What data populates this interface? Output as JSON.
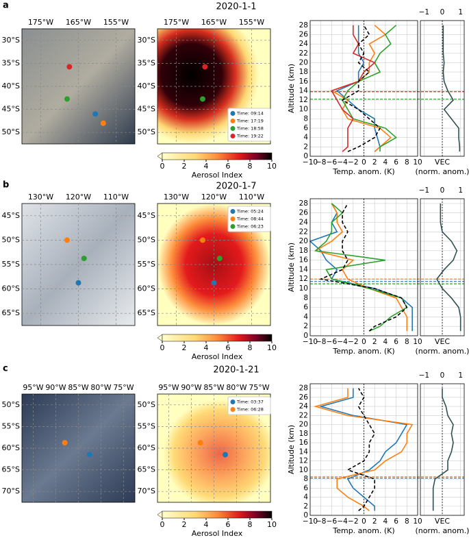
{
  "colorbar": {
    "label": "Aerosol Index",
    "lim": [
      0,
      10
    ],
    "ticks": [
      0,
      2,
      4,
      6,
      8,
      10
    ]
  },
  "temp_axis": {
    "xlabel": "Temp. anom. (K)",
    "ylabel": "Altitude (km)",
    "xlim": [
      -10,
      10
    ],
    "ylim": [
      0,
      29
    ],
    "grid": true,
    "xticks": [
      {
        "value": -10,
        "label": "−10"
      },
      {
        "value": -8,
        "label": "−8"
      },
      {
        "value": -6,
        "label": "−6"
      },
      {
        "value": -4,
        "label": "−4"
      },
      {
        "value": -2,
        "label": "−2"
      },
      0,
      2,
      4,
      6,
      8,
      10
    ],
    "yticks": [
      0,
      2,
      4,
      6,
      8,
      10,
      12,
      14,
      16,
      18,
      20,
      22,
      24,
      26,
      28
    ],
    "altitude": [
      1,
      2,
      4,
      6,
      8,
      10,
      12,
      14,
      16,
      18,
      20,
      22,
      24,
      26,
      28
    ]
  },
  "vec_axis": {
    "title": "VEC",
    "subtitle": "(norm. anom.)",
    "xlim": [
      -1.2,
      1.2
    ],
    "xticks": [
      {
        "value": -1,
        "label": "−1"
      },
      0,
      1
    ],
    "color": "#2f4f4f"
  },
  "rows": [
    {
      "label": "a",
      "title": "2020-1-1",
      "lon_labels": [
        "175°W",
        "165°W",
        "155°W"
      ],
      "lat_labels": [
        "30°S",
        "35°S",
        "40°S",
        "45°S",
        "50°S"
      ],
      "legend_loc": "lower right",
      "series": [
        {
          "name": "Time: 09:14",
          "color": "#1f77b4",
          "tropopause": null,
          "values": [
            2,
            3,
            2.5,
            2,
            2,
            -1,
            -3,
            -5,
            -1,
            -1,
            0,
            -1,
            -1,
            -1,
            -1
          ]
        },
        {
          "name": "Time: 17:19",
          "color": "#ff7f0e",
          "tropopause": null,
          "values": [
            2,
            3,
            5,
            3,
            -3,
            -4,
            -3,
            -6,
            -1,
            1,
            1,
            2,
            1,
            4,
            2
          ]
        },
        {
          "name": "Time: 18:58",
          "color": "#2ca02c",
          "tropopause": 12.2,
          "values": [
            3,
            3,
            6,
            4,
            -2,
            -3,
            -4,
            -3,
            -1,
            3,
            2,
            3,
            5,
            4,
            6
          ]
        },
        {
          "name": "Time: 19:22",
          "color": "#d62728",
          "tropopause": 13.8,
          "values": [
            -4,
            -3,
            -3,
            -3,
            -2,
            -4,
            -5,
            -6,
            -1,
            0,
            2,
            -2,
            -1,
            -2,
            -2
          ]
        }
      ],
      "reference": {
        "color": "#000000",
        "values": [
          -3,
          -1,
          2,
          3,
          1,
          -1,
          -4,
          -1,
          -1,
          1,
          -1,
          0,
          -1,
          1,
          0
        ]
      },
      "vec": [
        0.95,
        0.95,
        0.9,
        0.9,
        0.5,
        0.1,
        0.6,
        0.3,
        0.1,
        0.05,
        0.1,
        0.05,
        0.05,
        0.05,
        0.05
      ]
    },
    {
      "label": "b",
      "title": "2020-1-7",
      "lon_labels": [
        "130°W",
        "120°W",
        "110°W"
      ],
      "lat_labels": [
        "45°S",
        "50°S",
        "55°S",
        "60°S",
        "65°S"
      ],
      "legend_loc": "upper right",
      "series": [
        {
          "name": "Time: 05:24",
          "color": "#1f77b4",
          "tropopause": 11.5,
          "values": [
            9,
            9,
            9,
            9,
            7,
            2,
            -6,
            -5,
            -7,
            -8,
            -10,
            -5,
            -6,
            -5,
            -6
          ]
        },
        {
          "name": "Time: 08:44",
          "color": "#ff7f0e",
          "tropopause": 12,
          "values": [
            8,
            8,
            8,
            7,
            6,
            1,
            -3,
            -4,
            -2,
            -9,
            -6,
            -4,
            -5,
            -5,
            -6
          ]
        },
        {
          "name": "Time: 06:23",
          "color": "#2ca02c",
          "tropopause": 11,
          "values": [
            1,
            3,
            5,
            8,
            7,
            1,
            -6,
            -7,
            4,
            -9,
            -7,
            -6,
            -6,
            -4,
            -6
          ]
        }
      ],
      "reference": {
        "color": "#000000",
        "values": [
          1,
          2,
          6,
          8,
          7,
          2,
          -8,
          -4,
          -3,
          -4,
          -4,
          -3,
          -4,
          -4,
          -3
        ]
      },
      "vec": [
        1,
        1,
        1,
        0.9,
        0.5,
        0,
        -0.3,
        0.1,
        0.6,
        0.8,
        0.5,
        0,
        -0.1,
        -0.1,
        -0.1
      ]
    },
    {
      "label": "c",
      "title": "2020-1-21",
      "lon_labels": [
        "95°W",
        "90°W",
        "85°W",
        "80°W",
        "75°W"
      ],
      "lat_labels": [
        "50°S",
        "55°S",
        "60°S",
        "65°S",
        "70°S"
      ],
      "legend_loc": "upper right",
      "series": [
        {
          "name": "Time: 03:37",
          "color": "#1f77b4",
          "tropopause": 8.2,
          "values": [
            2,
            2,
            0,
            -2,
            -3,
            1,
            3,
            4,
            6,
            7,
            8,
            -2,
            -8,
            -2,
            -2
          ]
        },
        {
          "name": "Time: 06:28",
          "color": "#ff7f0e",
          "tropopause": 8.5,
          "values": [
            1,
            0,
            -3,
            -5,
            -5,
            2,
            4,
            7,
            8,
            8,
            9,
            -3,
            -9,
            -3,
            -3
          ]
        }
      ],
      "reference": {
        "color": "#000000",
        "values": [
          -1,
          0,
          1,
          2,
          2,
          -3,
          0,
          1,
          1,
          2,
          1,
          0,
          -1,
          0,
          -1
        ]
      },
      "vec": [
        -0.5,
        -0.5,
        -0.5,
        -0.5,
        -0.4,
        0.3,
        0.3,
        0.5,
        0.6,
        0.5,
        0.6,
        0.3,
        0.2,
        0,
        0
      ]
    }
  ]
}
